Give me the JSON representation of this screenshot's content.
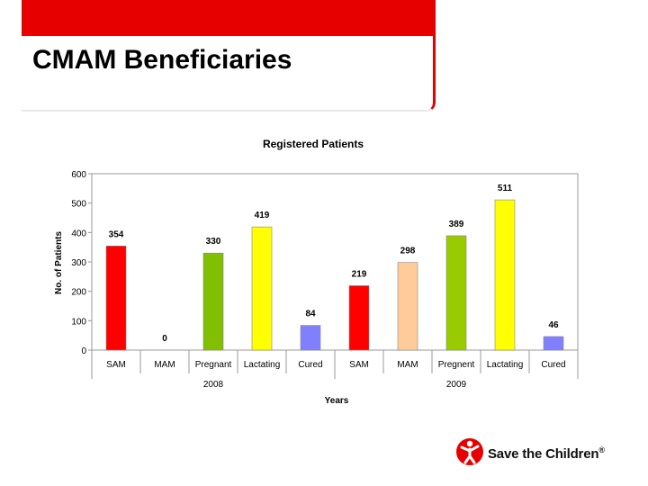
{
  "slide": {
    "title": "CMAM Beneficiaries",
    "accent": "#e60000"
  },
  "logo": {
    "text": "Save the Children",
    "mark": "®",
    "icon": "running-child-icon"
  },
  "chart_data": {
    "type": "bar",
    "title": "Registered Patients",
    "xlabel": "Years",
    "ylabel": "No. of Patients",
    "ylim": [
      0,
      600
    ],
    "yticks": [
      0,
      100,
      200,
      300,
      400,
      500,
      600
    ],
    "grid": false,
    "legend": "none",
    "categories": [
      "SAM",
      "MAM",
      "Pregnant",
      "Lactating",
      "Cured",
      "SAM",
      "MAM",
      "Pregnent",
      "Lactating",
      "Cured"
    ],
    "groups": [
      {
        "label": "2008",
        "span": [
          0,
          4
        ]
      },
      {
        "label": "2009",
        "span": [
          5,
          9
        ]
      }
    ],
    "values": [
      354,
      0,
      330,
      419,
      84,
      219,
      298,
      389,
      511,
      46
    ],
    "colors": [
      "#ff0000",
      "#ff0000",
      "#80c000",
      "#ffff00",
      "#8080ff",
      "#ff0000",
      "#ffcc99",
      "#99cc00",
      "#ffff00",
      "#8080ff"
    ]
  }
}
